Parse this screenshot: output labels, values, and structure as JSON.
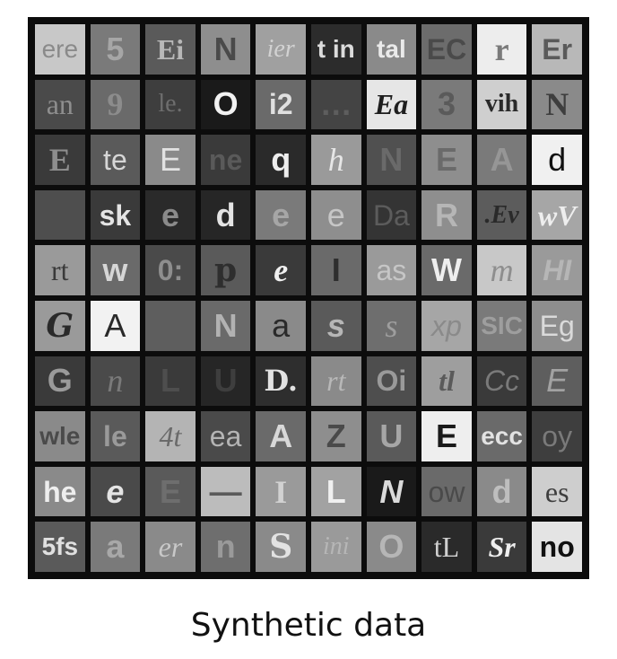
{
  "caption": "Synthetic data",
  "tiles": [
    {
      "text": "ere",
      "bg": "#c8c8c8",
      "fg": "#8a8a8a",
      "f": "f-sans nb"
    },
    {
      "text": "5",
      "bg": "#7a7a7a",
      "fg": "#a6a6a6",
      "f": "f-sans"
    },
    {
      "text": "Ei",
      "bg": "#5a5a5a",
      "fg": "#b8b8b8",
      "f": "f-serif"
    },
    {
      "text": "N",
      "bg": "#8e8e8e",
      "fg": "#4a4a4a",
      "f": "f-sans"
    },
    {
      "text": "ier",
      "bg": "#a0a0a0",
      "fg": "#d2d2d2",
      "f": "f-serif it nb"
    },
    {
      "text": "t in",
      "bg": "#2c2c2c",
      "fg": "#dcdcdc",
      "f": "f-sans"
    },
    {
      "text": "tal",
      "bg": "#8a8a8a",
      "fg": "#eaeaea",
      "f": "f-sans"
    },
    {
      "text": "EC",
      "bg": "#6c6c6c",
      "fg": "#4a4a4a",
      "f": "f-sans"
    },
    {
      "text": "r",
      "bg": "#ededed",
      "fg": "#7a7a7a",
      "f": "f-serif"
    },
    {
      "text": "Er",
      "bg": "#b8b8b8",
      "fg": "#5a5a5a",
      "f": "f-sans"
    },
    {
      "text": "an",
      "bg": "#4a4a4a",
      "fg": "#8e8e8e",
      "f": "f-serif nb"
    },
    {
      "text": "9",
      "bg": "#6a6a6a",
      "fg": "#8c8c8c",
      "f": "f-serif"
    },
    {
      "text": "le.",
      "bg": "#3e3e3e",
      "fg": "#6e6e6e",
      "f": "f-serif nb"
    },
    {
      "text": "O",
      "bg": "#1a1a1a",
      "fg": "#f2f2f2",
      "f": "f-sans"
    },
    {
      "text": "i2",
      "bg": "#6a6a6a",
      "fg": "#e0e0e0",
      "f": "f-sans"
    },
    {
      "text": "…",
      "bg": "#444444",
      "fg": "#5e5e5e",
      "f": "f-sans"
    },
    {
      "text": "Ea",
      "bg": "#e6e6e6",
      "fg": "#1e1e1e",
      "f": "f-serif it"
    },
    {
      "text": "3",
      "bg": "#7a7a7a",
      "fg": "#5a5a5a",
      "f": "f-sans"
    },
    {
      "text": "vih",
      "bg": "#cfcfcf",
      "fg": "#2a2a2a",
      "f": "f-serif"
    },
    {
      "text": "N",
      "bg": "#8a8a8a",
      "fg": "#3e3e3e",
      "f": "f-serif"
    },
    {
      "text": "E",
      "bg": "#3a3a3a",
      "fg": "#8e8e8e",
      "f": "f-serif"
    },
    {
      "text": "te",
      "bg": "#5a5a5a",
      "fg": "#d6d6d6",
      "f": "f-sans nb"
    },
    {
      "text": "E",
      "bg": "#8a8a8a",
      "fg": "#e2e2e2",
      "f": "f-sans nb"
    },
    {
      "text": "ne",
      "bg": "#3a3a3a",
      "fg": "#5a5a5a",
      "f": "f-sans"
    },
    {
      "text": "q",
      "bg": "#2a2a2a",
      "fg": "#eeeeee",
      "f": "f-sans"
    },
    {
      "text": "h",
      "bg": "#9a9a9a",
      "fg": "#e6e6e6",
      "f": "f-serif it nb"
    },
    {
      "text": "N",
      "bg": "#505050",
      "fg": "#6a6a6a",
      "f": "f-sans"
    },
    {
      "text": "E",
      "bg": "#8e8e8e",
      "fg": "#6a6a6a",
      "f": "f-sans"
    },
    {
      "text": "A",
      "bg": "#7a7a7a",
      "fg": "#969696",
      "f": "f-sans"
    },
    {
      "text": "d",
      "bg": "#f0f0f0",
      "fg": "#111111",
      "f": "f-sans nb"
    },
    {
      "text": "",
      "bg": "#4e4e4e",
      "fg": "#4e4e4e",
      "f": "f-sans"
    },
    {
      "text": "sk",
      "bg": "#3a3a3a",
      "fg": "#e4e4e4",
      "f": "f-sans"
    },
    {
      "text": "e",
      "bg": "#2a2a2a",
      "fg": "#8a8a8a",
      "f": "f-sans"
    },
    {
      "text": "d",
      "bg": "#262626",
      "fg": "#e4e4e4",
      "f": "f-sans"
    },
    {
      "text": "e",
      "bg": "#7a7a7a",
      "fg": "#a6a6a6",
      "f": "f-sans"
    },
    {
      "text": "e",
      "bg": "#8e8e8e",
      "fg": "#c6c6c6",
      "f": "f-sans nb"
    },
    {
      "text": "Da",
      "bg": "#343434",
      "fg": "#5c5c5c",
      "f": "f-sans nb"
    },
    {
      "text": "R",
      "bg": "#8e8e8e",
      "fg": "#b6b6b6",
      "f": "f-sans"
    },
    {
      "text": ".Ev",
      "bg": "#5c5c5c",
      "fg": "#2a2a2a",
      "f": "f-serif it"
    },
    {
      "text": "wV",
      "bg": "#a6a6a6",
      "fg": "#eeeeee",
      "f": "f-serif it"
    },
    {
      "text": "rt",
      "bg": "#9a9a9a",
      "fg": "#3a3a3a",
      "f": "f-serif nb"
    },
    {
      "text": "w",
      "bg": "#6a6a6a",
      "fg": "#d6d6d6",
      "f": "f-sans"
    },
    {
      "text": "0:",
      "bg": "#4a4a4a",
      "fg": "#8e8e8e",
      "f": "f-sans"
    },
    {
      "text": "p",
      "bg": "#5a5a5a",
      "fg": "#2e2e2e",
      "f": "f-dserif"
    },
    {
      "text": "e",
      "bg": "#3a3a3a",
      "fg": "#f0f0f0",
      "f": "f-serif it"
    },
    {
      "text": "I",
      "bg": "#6a6a6a",
      "fg": "#2e2e2e",
      "f": "f-sans"
    },
    {
      "text": "as",
      "bg": "#9a9a9a",
      "fg": "#c6c6c6",
      "f": "f-sans nb"
    },
    {
      "text": "W",
      "bg": "#6a6a6a",
      "fg": "#eeeeee",
      "f": "f-sans"
    },
    {
      "text": "m",
      "bg": "#c8c8c8",
      "fg": "#8e8e8e",
      "f": "f-serif it nb"
    },
    {
      "text": "HI",
      "bg": "#9a9a9a",
      "fg": "#b6b6b6",
      "f": "f-sans it"
    },
    {
      "text": "G",
      "bg": "#9a9a9a",
      "fg": "#2a2a2a",
      "f": "f-dserif it"
    },
    {
      "text": "A",
      "bg": "#f2f2f2",
      "fg": "#2a2a2a",
      "f": "f-sans nb"
    },
    {
      "text": "",
      "bg": "#5e5e5e",
      "fg": "#5e5e5e",
      "f": "f-sans"
    },
    {
      "text": "N",
      "bg": "#6a6a6a",
      "fg": "#b2b2b2",
      "f": "f-sans"
    },
    {
      "text": "a",
      "bg": "#8a8a8a",
      "fg": "#2a2a2a",
      "f": "f-sans nb"
    },
    {
      "text": "s",
      "bg": "#5a5a5a",
      "fg": "#b6b6b6",
      "f": "f-sans it"
    },
    {
      "text": "s",
      "bg": "#6e6e6e",
      "fg": "#9e9e9e",
      "f": "f-serif it nb"
    },
    {
      "text": "xp",
      "bg": "#a6a6a6",
      "fg": "#8a8a8a",
      "f": "f-sans it nb"
    },
    {
      "text": "SIC",
      "bg": "#7a7a7a",
      "fg": "#9e9e9e",
      "f": "f-sans"
    },
    {
      "text": "Eg",
      "bg": "#8e8e8e",
      "fg": "#dadada",
      "f": "f-sans nb"
    },
    {
      "text": "G",
      "bg": "#3a3a3a",
      "fg": "#9a9a9a",
      "f": "f-sans"
    },
    {
      "text": "n",
      "bg": "#4a4a4a",
      "fg": "#7a7a7a",
      "f": "f-serif it nb"
    },
    {
      "text": "L",
      "bg": "#3a3a3a",
      "fg": "#4e4e4e",
      "f": "f-sans"
    },
    {
      "text": "U",
      "bg": "#262626",
      "fg": "#3e3e3e",
      "f": "f-sans"
    },
    {
      "text": "D.",
      "bg": "#2e2e2e",
      "fg": "#e2e2e2",
      "f": "f-dserif"
    },
    {
      "text": "rt",
      "bg": "#8a8a8a",
      "fg": "#b8b8b8",
      "f": "f-serif it nb"
    },
    {
      "text": "Oi",
      "bg": "#4e4e4e",
      "fg": "#9a9a9a",
      "f": "f-sans"
    },
    {
      "text": "tl",
      "bg": "#9e9e9e",
      "fg": "#5a5a5a",
      "f": "f-serif it"
    },
    {
      "text": "Cc",
      "bg": "#3a3a3a",
      "fg": "#7a7a7a",
      "f": "f-sans it nb"
    },
    {
      "text": "E",
      "bg": "#5e5e5e",
      "fg": "#a2a2a2",
      "f": "f-sans it nb"
    },
    {
      "text": "wle",
      "bg": "#8a8a8a",
      "fg": "#4a4a4a",
      "f": "f-sans"
    },
    {
      "text": "le",
      "bg": "#5a5a5a",
      "fg": "#9a9a9a",
      "f": "f-sans"
    },
    {
      "text": "4t",
      "bg": "#b4b4b4",
      "fg": "#6a6a6a",
      "f": "f-serif it nb"
    },
    {
      "text": "ea",
      "bg": "#4a4a4a",
      "fg": "#b4b4b4",
      "f": "f-sans nb"
    },
    {
      "text": "A",
      "bg": "#6a6a6a",
      "fg": "#d8d8d8",
      "f": "f-sans"
    },
    {
      "text": "Z",
      "bg": "#8e8e8e",
      "fg": "#4a4a4a",
      "f": "f-sans"
    },
    {
      "text": "U",
      "bg": "#5a5a5a",
      "fg": "#a6a6a6",
      "f": "f-sans"
    },
    {
      "text": "E",
      "bg": "#eeeeee",
      "fg": "#1a1a1a",
      "f": "f-sans"
    },
    {
      "text": "ecc",
      "bg": "#6a6a6a",
      "fg": "#e2e2e2",
      "f": "f-sans"
    },
    {
      "text": "oy",
      "bg": "#3e3e3e",
      "fg": "#7a7a7a",
      "f": "f-sans nb"
    },
    {
      "text": "he",
      "bg": "#8a8a8a",
      "fg": "#eeeeee",
      "f": "f-sans"
    },
    {
      "text": "e",
      "bg": "#4a4a4a",
      "fg": "#e4e4e4",
      "f": "f-sans it"
    },
    {
      "text": "E",
      "bg": "#5a5a5a",
      "fg": "#6e6e6e",
      "f": "f-sans"
    },
    {
      "text": "—",
      "bg": "#bcbcbc",
      "fg": "#5a5a5a",
      "f": "f-sans"
    },
    {
      "text": "I",
      "bg": "#9a9a9a",
      "fg": "#d2d2d2",
      "f": "f-serif"
    },
    {
      "text": "L",
      "bg": "#a2a2a2",
      "fg": "#f0f0f0",
      "f": "f-sans"
    },
    {
      "text": "N",
      "bg": "#1a1a1a",
      "fg": "#dadada",
      "f": "f-sans it"
    },
    {
      "text": "ow",
      "bg": "#6a6a6a",
      "fg": "#4a4a4a",
      "f": "f-sans nb"
    },
    {
      "text": "d",
      "bg": "#8a8a8a",
      "fg": "#bebebe",
      "f": "f-sans"
    },
    {
      "text": "es",
      "bg": "#cecece",
      "fg": "#3e3e3e",
      "f": "f-serif nb"
    },
    {
      "text": "5fs",
      "bg": "#5a5a5a",
      "fg": "#e0e0e0",
      "f": "f-sans"
    },
    {
      "text": "a",
      "bg": "#7a7a7a",
      "fg": "#a8a8a8",
      "f": "f-sans"
    },
    {
      "text": "er",
      "bg": "#8a8a8a",
      "fg": "#c8c8c8",
      "f": "f-serif it nb"
    },
    {
      "text": "n",
      "bg": "#6e6e6e",
      "fg": "#9a9a9a",
      "f": "f-sans"
    },
    {
      "text": "S",
      "bg": "#8a8a8a",
      "fg": "#e2e2e2",
      "f": "f-dserif"
    },
    {
      "text": "ini",
      "bg": "#9a9a9a",
      "fg": "#b6b6b6",
      "f": "f-serif it nb"
    },
    {
      "text": "O",
      "bg": "#8a8a8a",
      "fg": "#b6b6b6",
      "f": "f-sans"
    },
    {
      "text": "tL",
      "bg": "#2a2a2a",
      "fg": "#cfcfcf",
      "f": "f-serif nb"
    },
    {
      "text": "Sr",
      "bg": "#3a3a3a",
      "fg": "#eeeeee",
      "f": "f-serif it"
    },
    {
      "text": "no",
      "bg": "#e4e4e4",
      "fg": "#111111",
      "f": "f-sans"
    }
  ]
}
